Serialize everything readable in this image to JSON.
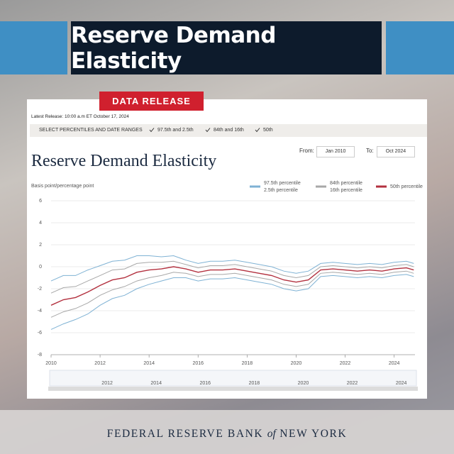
{
  "banner": {
    "title": "Reserve Demand Elasticity",
    "tag": "DATA RELEASE"
  },
  "header": {
    "latest_release": "Latest Release: 10:00 a.m ET October 17, 2024",
    "select_label": "SELECT PERCENTILES AND DATE RANGES",
    "options": [
      "97.5th and 2.5th",
      "84th and 16th",
      "50th"
    ],
    "from_label": "From:",
    "from_value": "Jan 2010",
    "to_label": "To:",
    "to_value": "Oct 2024"
  },
  "chart_data": {
    "type": "line",
    "title": "Reserve Demand Elasticity",
    "y_label": "Basis point/percentage point",
    "x": [
      2010,
      2010.5,
      2011,
      2011.5,
      2012,
      2012.5,
      2013,
      2013.5,
      2014,
      2014.5,
      2015,
      2015.5,
      2016,
      2016.5,
      2017,
      2017.5,
      2018,
      2018.5,
      2019,
      2019.5,
      2020,
      2020.5,
      2021,
      2021.5,
      2022,
      2022.5,
      2023,
      2023.5,
      2024,
      2024.5,
      2024.8
    ],
    "series": [
      {
        "name": "97.5th percentile",
        "color": "#7fb2d4",
        "values": [
          -1.3,
          -0.8,
          -0.8,
          -0.3,
          0.1,
          0.5,
          0.6,
          1.0,
          1.0,
          0.9,
          1.0,
          0.6,
          0.3,
          0.5,
          0.5,
          0.6,
          0.4,
          0.2,
          0.0,
          -0.4,
          -0.6,
          -0.4,
          0.3,
          0.4,
          0.3,
          0.2,
          0.3,
          0.2,
          0.4,
          0.5,
          0.3
        ]
      },
      {
        "name": "2.5th percentile",
        "color": "#7fb2d4",
        "values": [
          -5.7,
          -5.2,
          -4.8,
          -4.3,
          -3.5,
          -2.9,
          -2.6,
          -2.0,
          -1.6,
          -1.3,
          -1.0,
          -1.0,
          -1.3,
          -1.1,
          -1.1,
          -1.0,
          -1.2,
          -1.4,
          -1.6,
          -2.0,
          -2.2,
          -2.0,
          -0.9,
          -0.8,
          -0.9,
          -1.0,
          -0.9,
          -1.0,
          -0.8,
          -0.7,
          -0.9
        ]
      },
      {
        "name": "84th percentile",
        "color": "#a8a8a8",
        "values": [
          -2.4,
          -1.9,
          -1.8,
          -1.3,
          -0.8,
          -0.3,
          -0.2,
          0.3,
          0.4,
          0.4,
          0.5,
          0.2,
          -0.1,
          0.1,
          0.1,
          0.2,
          0.0,
          -0.2,
          -0.4,
          -0.8,
          -1.0,
          -0.8,
          0.0,
          0.1,
          0.0,
          -0.1,
          0.0,
          -0.1,
          0.1,
          0.2,
          0.0
        ]
      },
      {
        "name": "16th percentile",
        "color": "#a8a8a8",
        "values": [
          -4.6,
          -4.1,
          -3.8,
          -3.3,
          -2.6,
          -2.1,
          -1.8,
          -1.3,
          -1.0,
          -0.8,
          -0.5,
          -0.6,
          -0.9,
          -0.7,
          -0.7,
          -0.6,
          -0.8,
          -1.0,
          -1.2,
          -1.6,
          -1.8,
          -1.6,
          -0.6,
          -0.5,
          -0.6,
          -0.7,
          -0.6,
          -0.7,
          -0.5,
          -0.4,
          -0.6
        ]
      },
      {
        "name": "50th percentile",
        "color": "#b3313f",
        "values": [
          -3.5,
          -3.0,
          -2.8,
          -2.3,
          -1.7,
          -1.2,
          -1.0,
          -0.5,
          -0.3,
          -0.2,
          0.0,
          -0.2,
          -0.5,
          -0.3,
          -0.3,
          -0.2,
          -0.4,
          -0.6,
          -0.8,
          -1.2,
          -1.4,
          -1.2,
          -0.3,
          -0.2,
          -0.3,
          -0.4,
          -0.3,
          -0.4,
          -0.2,
          -0.1,
          -0.3
        ]
      }
    ],
    "xlim": [
      2010,
      2024.85
    ],
    "ylim": [
      -8,
      6
    ],
    "xticks": [
      2010,
      2012,
      2014,
      2016,
      2018,
      2020,
      2022,
      2024
    ],
    "yticks": [
      -8,
      -6,
      -4,
      -2,
      0,
      2,
      4,
      6
    ],
    "grid": true
  },
  "footer": {
    "left": "FEDERAL RESERVE BANK",
    "middle": "of",
    "right": "NEW YORK"
  }
}
